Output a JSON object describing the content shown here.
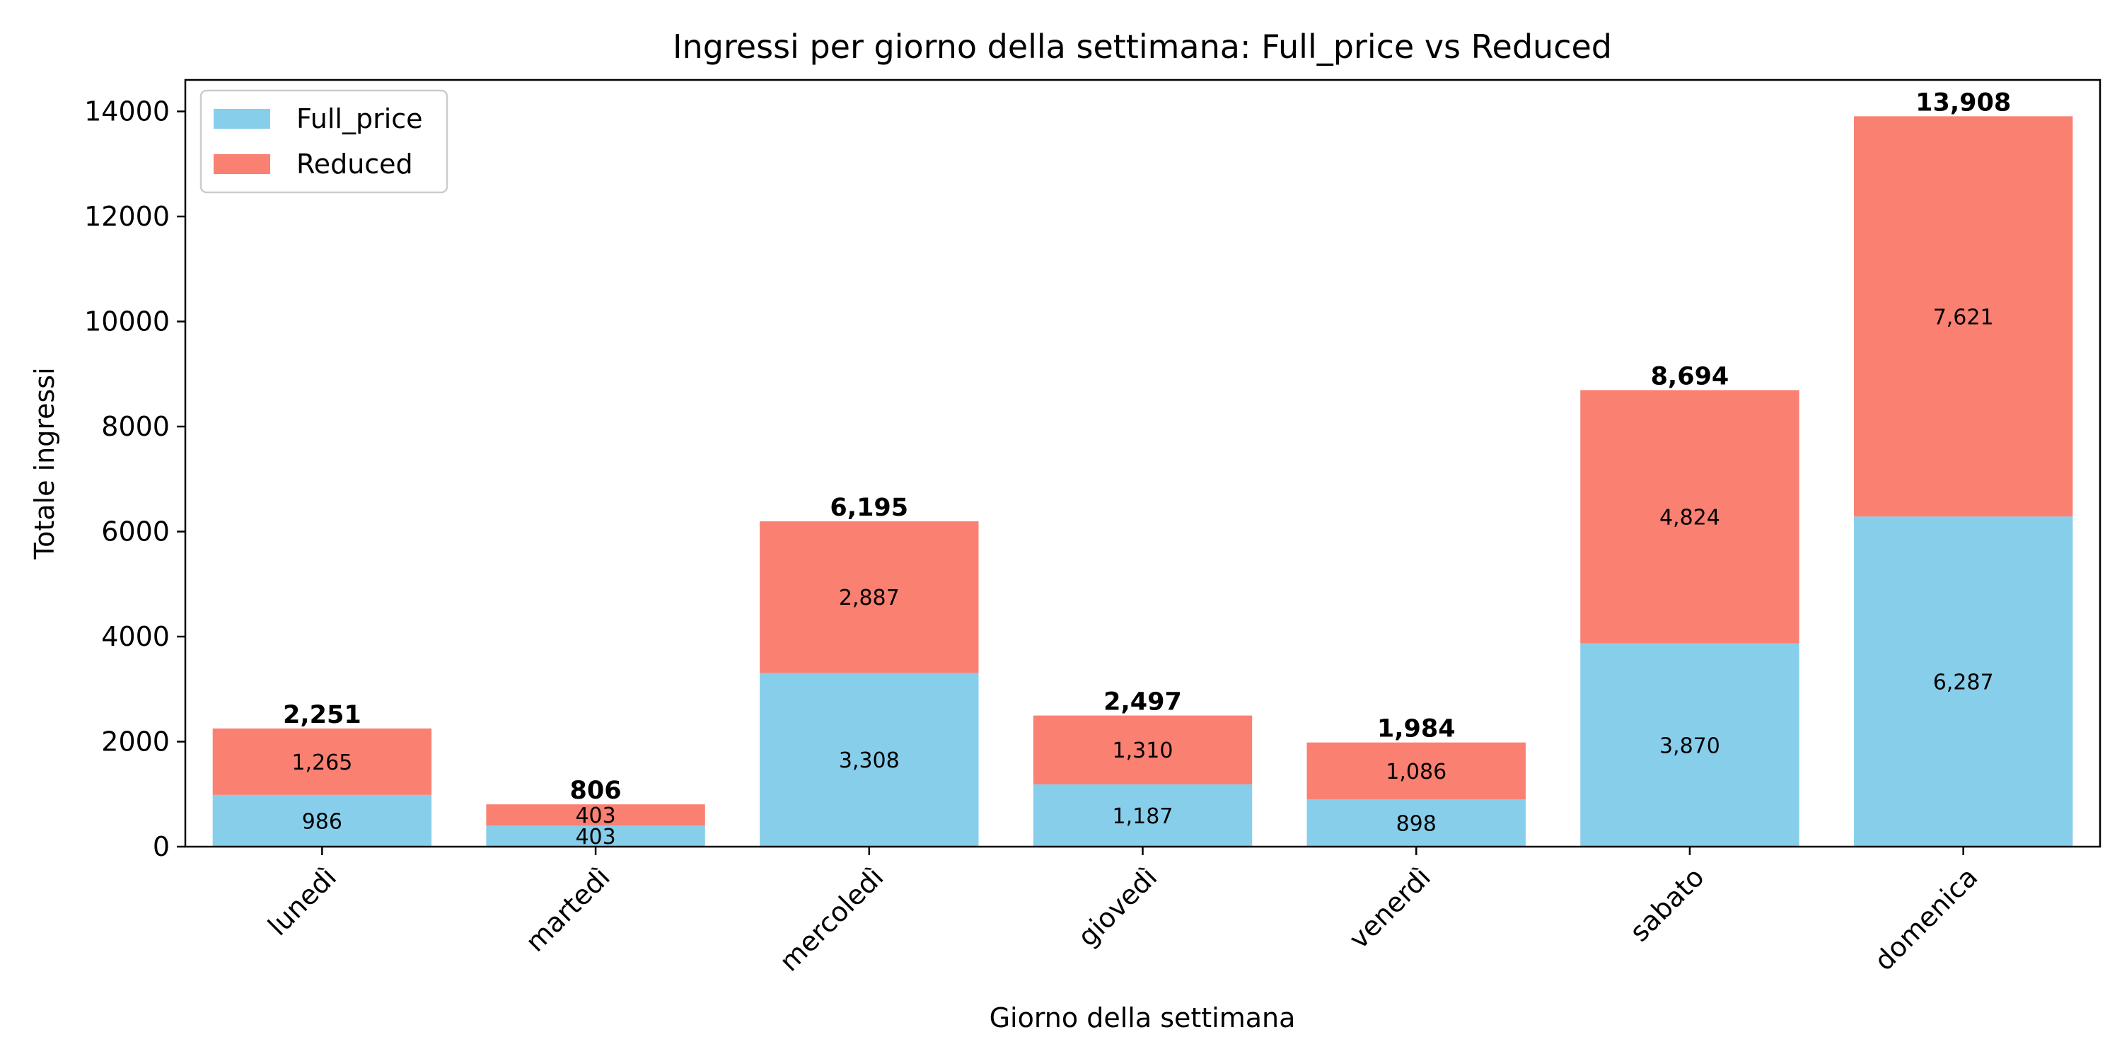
{
  "chart_data": {
    "type": "bar",
    "stacked": true,
    "title": "Ingressi per giorno della settimana: Full_price vs Reduced",
    "xlabel": "Giorno della settimana",
    "ylabel": "Totale ingressi",
    "categories": [
      "lunedì",
      "martedì",
      "mercoledì",
      "giovedì",
      "venerdì",
      "sabato",
      "domenica"
    ],
    "series": [
      {
        "name": "Full_price",
        "color": "#87CEEB",
        "values": [
          986,
          403,
          3308,
          1187,
          898,
          3870,
          6287
        ],
        "value_labels": [
          "986",
          "403",
          "3,308",
          "1,187",
          "898",
          "3,870",
          "6,287"
        ]
      },
      {
        "name": "Reduced",
        "color": "#FA8072",
        "values": [
          1265,
          403,
          2887,
          1310,
          1086,
          4824,
          7621
        ],
        "value_labels": [
          "1,265",
          "403",
          "2,887",
          "1,310",
          "1,086",
          "4,824",
          "7,621"
        ]
      }
    ],
    "totals": [
      2251,
      806,
      6195,
      2497,
      1984,
      8694,
      13908
    ],
    "total_labels": [
      "2,251",
      "806",
      "6,195",
      "2,497",
      "1,984",
      "8,694",
      "13,908"
    ],
    "ylim": [
      0,
      14600
    ],
    "yticks": [
      0,
      2000,
      4000,
      6000,
      8000,
      10000,
      12000,
      14000
    ],
    "ytick_labels": [
      "0",
      "2000",
      "4000",
      "6000",
      "8000",
      "10000",
      "12000",
      "14000"
    ],
    "xtick_rotation_deg": 45,
    "grid": false,
    "legend_position": "top-left"
  }
}
